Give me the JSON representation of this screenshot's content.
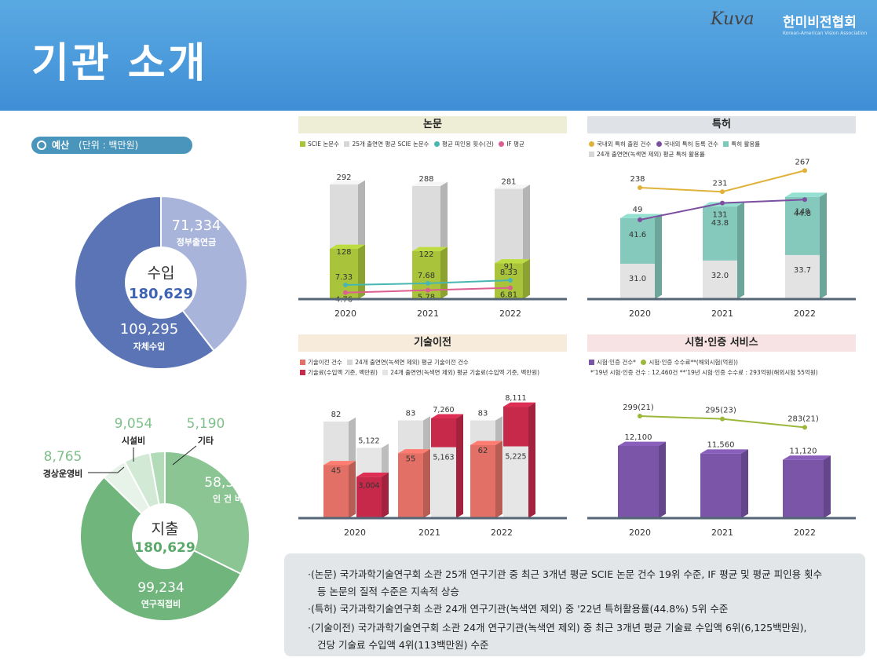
{
  "header": {
    "title": "기관 소개",
    "logo_mark": "Kuva",
    "logo_text": "한미비전협회",
    "logo_sub": "Korean-American Vision Association"
  },
  "budget": {
    "label": "예산",
    "unit": "(단위 : 백만원)"
  },
  "chart_data": [
    {
      "type": "pie",
      "title": "수입",
      "total": "180,629",
      "slices": [
        {
          "label": "정부출연금",
          "value": 71334,
          "display": "71,334",
          "color": "#a9b4db"
        },
        {
          "label": "자체수입",
          "value": 109295,
          "display": "109,295",
          "color": "#5a74b6"
        }
      ]
    },
    {
      "type": "pie",
      "title": "지출",
      "total": "180,629",
      "slices": [
        {
          "label": "인 건 비",
          "value": 58386,
          "display": "58,386",
          "color": "#8bc594"
        },
        {
          "label": "연구직접비",
          "value": 99234,
          "display": "99,234",
          "color": "#6fb57c"
        },
        {
          "label": "경상운영비",
          "value": 8765,
          "display": "8,765",
          "color": "#e7f3e8"
        },
        {
          "label": "시설비",
          "value": 9054,
          "display": "9,054",
          "color": "#d2ead5"
        },
        {
          "label": "기타",
          "value": 5190,
          "display": "5,190",
          "color": "#b2dbb8"
        }
      ]
    },
    {
      "type": "bar",
      "title": "논문",
      "categories": [
        "2020",
        "2021",
        "2022"
      ],
      "legend": [
        "SCIE 논문수",
        "25개 출연연 평균 SCIE 논문수",
        "평균 피인용 횟수(건)",
        "IF 평균"
      ],
      "series": [
        {
          "name": "25개 출연연 평균 SCIE 논문수",
          "values": [
            292,
            288,
            281
          ]
        },
        {
          "name": "SCIE 논문수",
          "values": [
            128,
            122,
            91
          ]
        },
        {
          "name": "평균 피인용 횟수(건)",
          "values": [
            7.33,
            7.68,
            8.33
          ],
          "labels": [
            "7.33",
            "7.68",
            "8.33"
          ]
        },
        {
          "name": "IF 평균",
          "values": [
            4.76,
            5.78,
            6.81
          ],
          "labels": [
            "4.76",
            "5.78",
            "6.81"
          ]
        }
      ]
    },
    {
      "type": "bar",
      "title": "특허",
      "categories": [
        "2020",
        "2021",
        "2022"
      ],
      "legend": [
        "국내외 특허 출원 건수",
        "국내외 특허 등록 건수",
        "특허 활용률",
        "24개 출연연(녹색연 제외) 평균 특허 활용률"
      ],
      "series": [
        {
          "name": "24개 출연연(녹색연 제외) 평균 특허 활용률",
          "values": [
            31.0,
            32.0,
            33.7
          ],
          "labels": [
            "31.0",
            "32.0",
            "33.7"
          ]
        },
        {
          "name": "특허 활용률",
          "values": [
            41.6,
            43.8,
            44.8
          ],
          "labels": [
            "41.6",
            "43.8",
            "44.8"
          ]
        },
        {
          "name": "국내외 특허 출원 건수",
          "values": [
            238,
            231,
            267
          ]
        },
        {
          "name": "국내외 특허 등록 건수",
          "values": [
            49,
            131,
            148
          ]
        }
      ]
    },
    {
      "type": "bar",
      "title": "기술이전",
      "categories": [
        "2020",
        "2021",
        "2022"
      ],
      "legend": [
        "기술이전 건수",
        "24개 출연연(녹색연 제외) 평균 기술이전 건수",
        "기술료(수입액 기준, 백만원)",
        "24개 출연연(녹색연 제외) 평균 기술료(수입액 기준, 백만원)"
      ],
      "series": [
        {
          "name": "기술이전 건수",
          "values": [
            45,
            55,
            62
          ]
        },
        {
          "name": "24개 출연연(녹색연 제외) 평균 기술이전 건수",
          "values": [
            82,
            83,
            83
          ]
        },
        {
          "name": "기술료(수입액 기준, 백만원)",
          "values": [
            3004,
            7260,
            8111
          ],
          "labels": [
            "3,004",
            "7,260",
            "8,111"
          ]
        },
        {
          "name": "24개 출연연(녹색연 제외) 평균 기술료(수입액 기준, 백만원)",
          "values": [
            5122,
            5163,
            5225
          ],
          "labels": [
            "5,122",
            "5,163",
            "5,225"
          ]
        }
      ]
    },
    {
      "type": "bar",
      "title": "시험·인증 서비스",
      "categories": [
        "2020",
        "2021",
        "2022"
      ],
      "legend": [
        "시험·인증 건수*",
        "시험·인증 수수료**(해외시험(억원))"
      ],
      "notes": "*'19년 시험·인증 건수 : 12,460건   **'19년 시험·인증 수수료 : 293억원(해외시험 55억원)",
      "series": [
        {
          "name": "시험·인증 건수",
          "values": [
            12100,
            11560,
            11120
          ],
          "labels": [
            "12,100",
            "11,560",
            "11,120"
          ]
        },
        {
          "name": "시험·인증 수수료",
          "values": [
            299,
            295,
            283
          ],
          "labels": [
            "299(21)",
            "295(23)",
            "283(21)"
          ]
        }
      ]
    }
  ],
  "summary": [
    "·(논문) 국가과학기술연구회 소관 25개 연구기관 중 최근 3개년 평균 SCIE 논문 건수 19위 수준, IF 평균 및 평균 피인용 횟수",
    "등 논문의 질적 수준은 지속적 상승",
    "·(특허) 국가과학기술연구회 소관 24개 연구기관(녹색연 제외) 중 '22년 특허활용률(44.8%) 5위 수준",
    "·(기술이전) 국가과학기술연구회 소관 24개 연구기관(녹색연 제외) 중 최근 3개년 평균 기술료 수입액 6위(6,125백만원),",
    "건당 기술료 수입액 4위(113백만원) 수준"
  ]
}
